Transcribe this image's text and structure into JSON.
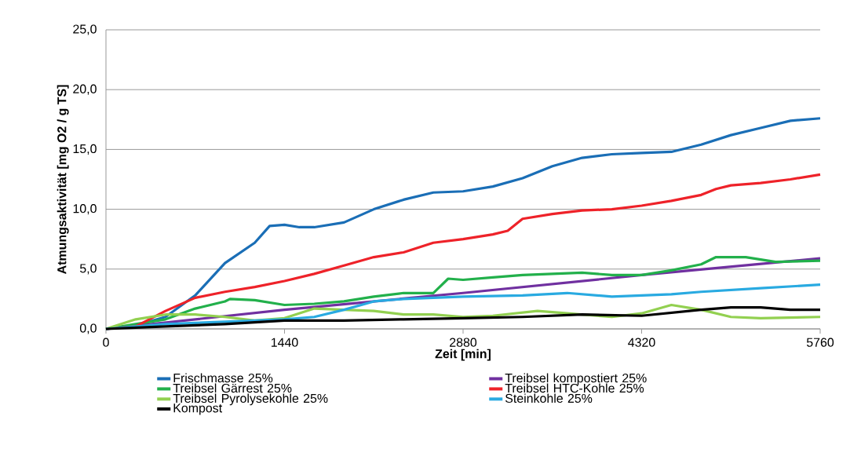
{
  "chart_data": {
    "type": "line",
    "xlabel": "Zeit [min]",
    "ylabel": "Atmungsaktivität [mg O2 / g TS]",
    "xlim": [
      0,
      5760
    ],
    "ylim": [
      0,
      25
    ],
    "xticks": [
      0,
      1440,
      2880,
      4320,
      5760
    ],
    "yticks": [
      {
        "value": 0,
        "label": "0,0"
      },
      {
        "value": 5,
        "label": "5,0"
      },
      {
        "value": 10,
        "label": "10,0"
      },
      {
        "value": 15,
        "label": "15,0"
      },
      {
        "value": 20,
        "label": "20,0"
      },
      {
        "value": 25,
        "label": "25,0"
      }
    ],
    "grid": "y",
    "legend": "bottom",
    "marker": "none",
    "line_style": "solid",
    "series": [
      {
        "name": "Frischmasse 25%",
        "color": "#1a6eb6",
        "x": [
          0,
          240,
          480,
          720,
          960,
          1200,
          1320,
          1440,
          1560,
          1680,
          1920,
          2160,
          2400,
          2640,
          2880,
          3120,
          3360,
          3600,
          3840,
          4080,
          4320,
          4560,
          4800,
          5040,
          5280,
          5520,
          5760
        ],
        "values": [
          0,
          0.3,
          1.0,
          2.8,
          5.5,
          7.2,
          8.6,
          8.7,
          8.5,
          8.5,
          8.9,
          10.0,
          10.8,
          11.4,
          11.5,
          11.9,
          12.6,
          13.6,
          14.3,
          14.6,
          14.7,
          14.8,
          15.4,
          16.2,
          16.8,
          17.4,
          17.6
        ]
      },
      {
        "name": "Treibsel kompostiert 25%",
        "color": "#7030a0",
        "x": [
          0,
          1440,
          2880,
          4320,
          5760
        ],
        "values": [
          0,
          1.6,
          3.0,
          4.5,
          5.9
        ]
      },
      {
        "name": "Treibsel Gärrest 25%",
        "color": "#22b04b",
        "x": [
          0,
          240,
          480,
          720,
          960,
          1000,
          1200,
          1440,
          1680,
          1920,
          2160,
          2400,
          2640,
          2760,
          2880,
          3120,
          3360,
          3600,
          3840,
          4080,
          4320,
          4560,
          4800,
          4920,
          5160,
          5400,
          5760
        ],
        "values": [
          0,
          0.4,
          0.8,
          1.7,
          2.3,
          2.5,
          2.4,
          2.0,
          2.1,
          2.3,
          2.7,
          3.0,
          3.0,
          4.2,
          4.1,
          4.3,
          4.5,
          4.6,
          4.7,
          4.5,
          4.5,
          4.9,
          5.4,
          6.0,
          6.0,
          5.6,
          5.7
        ]
      },
      {
        "name": "Treibsel HTC-Kohle 25%",
        "color": "#ee2229",
        "x": [
          0,
          240,
          480,
          720,
          960,
          1200,
          1440,
          1680,
          1920,
          2160,
          2400,
          2640,
          2880,
          3120,
          3240,
          3360,
          3600,
          3840,
          4080,
          4320,
          4560,
          4800,
          4920,
          5040,
          5280,
          5520,
          5760
        ],
        "values": [
          0,
          0.2,
          1.5,
          2.6,
          3.1,
          3.5,
          4.0,
          4.6,
          5.3,
          6.0,
          6.4,
          7.2,
          7.5,
          7.9,
          8.2,
          9.2,
          9.6,
          9.9,
          10.0,
          10.3,
          10.7,
          11.2,
          11.7,
          12.0,
          12.2,
          12.5,
          12.9
        ]
      },
      {
        "name": "Treibsel Pyrolysekohle 25%",
        "color": "#92d050",
        "x": [
          0,
          240,
          480,
          720,
          960,
          1200,
          1440,
          1680,
          1920,
          2160,
          2400,
          2640,
          2880,
          3120,
          3480,
          3720,
          4080,
          4320,
          4560,
          4800,
          5040,
          5280,
          5760
        ],
        "values": [
          0,
          0.8,
          1.2,
          1.2,
          1.0,
          0.7,
          0.9,
          1.7,
          1.6,
          1.5,
          1.2,
          1.2,
          1.0,
          1.1,
          1.5,
          1.3,
          1.0,
          1.3,
          2.0,
          1.6,
          1.0,
          0.9,
          1.0
        ]
      },
      {
        "name": "Steinkohle 25%",
        "color": "#29aae1",
        "x": [
          0,
          480,
          960,
          1440,
          1680,
          1920,
          2160,
          2400,
          2640,
          2880,
          3360,
          3720,
          4080,
          4320,
          4560,
          4800,
          5280,
          5760
        ],
        "values": [
          0,
          0.4,
          0.6,
          0.8,
          1.0,
          1.6,
          2.3,
          2.5,
          2.6,
          2.7,
          2.8,
          3.0,
          2.7,
          2.8,
          2.9,
          3.1,
          3.4,
          3.7
        ]
      },
      {
        "name": "Kompost",
        "color": "#000000",
        "x": [
          0,
          480,
          960,
          1440,
          1920,
          2400,
          2880,
          3360,
          3840,
          4320,
          4800,
          5040,
          5280,
          5520,
          5760
        ],
        "values": [
          0,
          0.2,
          0.4,
          0.7,
          0.7,
          0.8,
          0.9,
          1.0,
          1.2,
          1.1,
          1.6,
          1.8,
          1.8,
          1.6,
          1.6
        ]
      }
    ]
  }
}
